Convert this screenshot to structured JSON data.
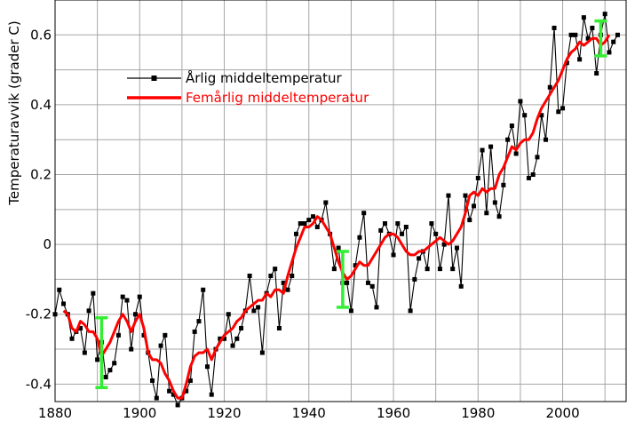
{
  "chart_data": {
    "type": "line",
    "ylabel": "Temperaturavvik (grader C)",
    "xlabel": "",
    "title": "",
    "xlim": [
      1880,
      2015
    ],
    "ylim": [
      -0.45,
      0.7
    ],
    "grid": true,
    "legend_position": "upper-left-center",
    "x_ticks": [
      1880,
      1900,
      1920,
      1940,
      1960,
      1980,
      2000
    ],
    "x_tick_labels": [
      "1880",
      "1900",
      "1920",
      "1940",
      "1960",
      "1980",
      "2000"
    ],
    "y_ticks": [
      -0.4,
      -0.2,
      0,
      0.2,
      0.4,
      0.6
    ],
    "y_tick_labels": [
      "-0.4",
      "-0.2",
      "0",
      "0.2",
      "0.4",
      "0.6"
    ],
    "series": [
      {
        "name": "Årlig middeltemperatur",
        "color": "#000000",
        "marker": "square",
        "x": [
          1880,
          1881,
          1882,
          1883,
          1884,
          1885,
          1886,
          1887,
          1888,
          1889,
          1890,
          1891,
          1892,
          1893,
          1894,
          1895,
          1896,
          1897,
          1898,
          1899,
          1900,
          1901,
          1902,
          1903,
          1904,
          1905,
          1906,
          1907,
          1908,
          1909,
          1910,
          1911,
          1912,
          1913,
          1914,
          1915,
          1916,
          1917,
          1918,
          1919,
          1920,
          1921,
          1922,
          1923,
          1924,
          1925,
          1926,
          1927,
          1928,
          1929,
          1930,
          1931,
          1932,
          1933,
          1934,
          1935,
          1936,
          1937,
          1938,
          1939,
          1940,
          1941,
          1942,
          1943,
          1944,
          1945,
          1946,
          1947,
          1948,
          1949,
          1950,
          1951,
          1952,
          1953,
          1954,
          1955,
          1956,
          1957,
          1958,
          1959,
          1960,
          1961,
          1962,
          1963,
          1964,
          1965,
          1966,
          1967,
          1968,
          1969,
          1970,
          1971,
          1972,
          1973,
          1974,
          1975,
          1976,
          1977,
          1978,
          1979,
          1980,
          1981,
          1982,
          1983,
          1984,
          1985,
          1986,
          1987,
          1988,
          1989,
          1990,
          1991,
          1992,
          1993,
          1994,
          1995,
          1996,
          1997,
          1998,
          1999,
          2000,
          2001,
          2002,
          2003,
          2004,
          2005,
          2006,
          2007,
          2008,
          2009,
          2010,
          2011,
          2012,
          2013
        ],
        "values": [
          -0.2,
          -0.13,
          -0.17,
          -0.2,
          -0.27,
          -0.25,
          -0.24,
          -0.31,
          -0.19,
          -0.14,
          -0.33,
          -0.28,
          -0.38,
          -0.36,
          -0.34,
          -0.26,
          -0.15,
          -0.16,
          -0.3,
          -0.2,
          -0.15,
          -0.26,
          -0.31,
          -0.39,
          -0.44,
          -0.29,
          -0.26,
          -0.42,
          -0.43,
          -0.46,
          -0.44,
          -0.42,
          -0.39,
          -0.25,
          -0.22,
          -0.13,
          -0.35,
          -0.43,
          -0.3,
          -0.27,
          -0.27,
          -0.2,
          -0.29,
          -0.27,
          -0.24,
          -0.19,
          -0.09,
          -0.19,
          -0.18,
          -0.31,
          -0.14,
          -0.09,
          -0.07,
          -0.24,
          -0.11,
          -0.13,
          -0.09,
          0.03,
          0.06,
          0.06,
          0.07,
          0.08,
          0.05,
          0.07,
          0.12,
          0.03,
          -0.07,
          -0.01,
          -0.11,
          -0.11,
          -0.19,
          -0.06,
          0.02,
          0.09,
          -0.11,
          -0.12,
          -0.18,
          0.04,
          0.06,
          0.03,
          -0.03,
          0.06,
          0.03,
          0.05,
          -0.19,
          -0.1,
          -0.04,
          -0.02,
          -0.07,
          0.06,
          0.03,
          -0.07,
          0.0,
          0.14,
          -0.07,
          -0.01,
          -0.12,
          0.14,
          0.07,
          0.11,
          0.19,
          0.27,
          0.09,
          0.28,
          0.12,
          0.08,
          0.17,
          0.3,
          0.34,
          0.26,
          0.41,
          0.37,
          0.19,
          0.2,
          0.25,
          0.37,
          0.3,
          0.45,
          0.62,
          0.38,
          0.39,
          0.52,
          0.6,
          0.6,
          0.53,
          0.65,
          0.59,
          0.62,
          0.49,
          0.6,
          0.66,
          0.55,
          0.58,
          0.6
        ]
      },
      {
        "name": "Femårlig middeltemperatur",
        "color": "#ff0000",
        "marker": "none",
        "x": [
          1882,
          1883,
          1884,
          1885,
          1886,
          1887,
          1888,
          1889,
          1890,
          1891,
          1892,
          1893,
          1894,
          1895,
          1896,
          1897,
          1898,
          1899,
          1900,
          1901,
          1902,
          1903,
          1904,
          1905,
          1906,
          1907,
          1908,
          1909,
          1910,
          1911,
          1912,
          1913,
          1914,
          1915,
          1916,
          1917,
          1918,
          1919,
          1920,
          1921,
          1922,
          1923,
          1924,
          1925,
          1926,
          1927,
          1928,
          1929,
          1930,
          1931,
          1932,
          1933,
          1934,
          1935,
          1936,
          1937,
          1938,
          1939,
          1940,
          1941,
          1942,
          1943,
          1944,
          1945,
          1946,
          1947,
          1948,
          1949,
          1950,
          1951,
          1952,
          1953,
          1954,
          1955,
          1956,
          1957,
          1958,
          1959,
          1960,
          1961,
          1962,
          1963,
          1964,
          1965,
          1966,
          1967,
          1968,
          1969,
          1970,
          1971,
          1972,
          1973,
          1974,
          1975,
          1976,
          1977,
          1978,
          1979,
          1980,
          1981,
          1982,
          1983,
          1984,
          1985,
          1986,
          1987,
          1988,
          1989,
          1990,
          1991,
          1992,
          1993,
          1994,
          1995,
          1996,
          1997,
          1998,
          1999,
          2000,
          2001,
          2002,
          2003,
          2004,
          2005,
          2006,
          2007,
          2008,
          2009,
          2010,
          2011
        ],
        "values": [
          -0.19,
          -0.2,
          -0.24,
          -0.25,
          -0.22,
          -0.23,
          -0.25,
          -0.25,
          -0.27,
          -0.32,
          -0.3,
          -0.28,
          -0.25,
          -0.22,
          -0.2,
          -0.22,
          -0.25,
          -0.22,
          -0.2,
          -0.24,
          -0.31,
          -0.33,
          -0.33,
          -0.34,
          -0.37,
          -0.39,
          -0.42,
          -0.44,
          -0.44,
          -0.4,
          -0.35,
          -0.32,
          -0.31,
          -0.31,
          -0.3,
          -0.33,
          -0.3,
          -0.28,
          -0.26,
          -0.25,
          -0.24,
          -0.22,
          -0.21,
          -0.19,
          -0.18,
          -0.17,
          -0.16,
          -0.16,
          -0.14,
          -0.15,
          -0.13,
          -0.13,
          -0.14,
          -0.09,
          -0.05,
          -0.01,
          0.02,
          0.05,
          0.05,
          0.06,
          0.08,
          0.07,
          0.05,
          0.03,
          -0.01,
          -0.05,
          -0.08,
          -0.1,
          -0.09,
          -0.07,
          -0.05,
          -0.06,
          -0.06,
          -0.04,
          -0.02,
          0.0,
          0.02,
          0.03,
          0.03,
          0.02,
          0.0,
          -0.02,
          -0.03,
          -0.03,
          -0.02,
          -0.02,
          -0.01,
          0.0,
          0.01,
          0.02,
          0.01,
          0.0,
          0.01,
          0.03,
          0.05,
          0.09,
          0.14,
          0.15,
          0.14,
          0.16,
          0.15,
          0.16,
          0.16,
          0.2,
          0.22,
          0.25,
          0.28,
          0.27,
          0.29,
          0.3,
          0.3,
          0.32,
          0.36,
          0.39,
          0.41,
          0.43,
          0.45,
          0.47,
          0.5,
          0.53,
          0.55,
          0.56,
          0.58,
          0.57,
          0.58,
          0.59,
          0.59,
          0.57,
          0.58,
          0.6
        ]
      }
    ],
    "error_bars": [
      {
        "x": 1891,
        "y_low": -0.41,
        "y_high": -0.21,
        "color": "#33ee33"
      },
      {
        "x": 1948,
        "y_low": -0.18,
        "y_high": -0.02,
        "color": "#33ee33"
      },
      {
        "x": 2009,
        "y_low": 0.54,
        "y_high": 0.64,
        "color": "#33ee33"
      }
    ]
  }
}
